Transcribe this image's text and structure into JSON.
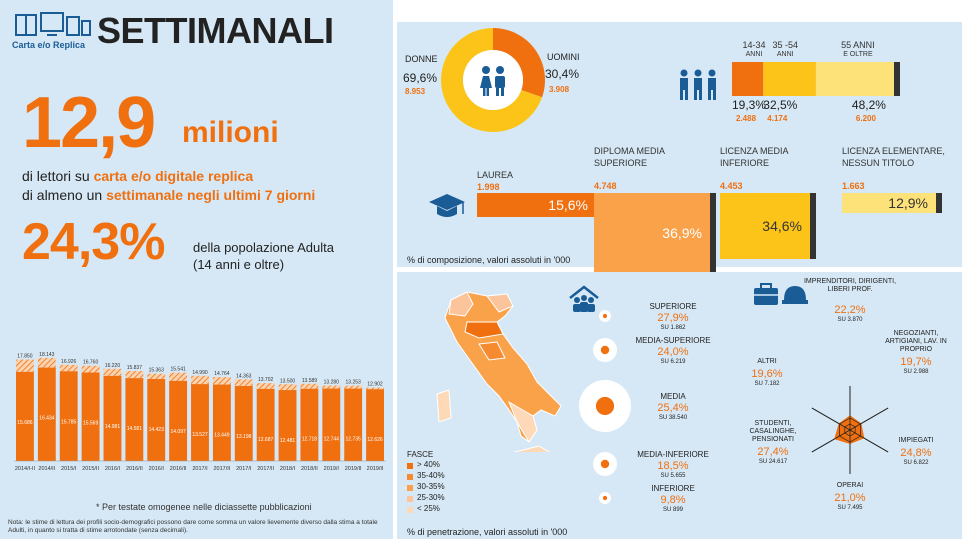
{
  "header": {
    "logo_text": "Carta e/o Replica",
    "title": "SETTIMANALI"
  },
  "hero": {
    "big_number": "12,9",
    "big_unit": "milioni",
    "line1_prefix": "di lettori su",
    "line1_highlight": "carta e/o digitale replica",
    "line2_prefix": "di almeno un",
    "line2_highlight": "settimanale negli ultimi 7 giorni",
    "pct": "24,3%",
    "pct_desc1": "della popolazione Adulta",
    "pct_desc2": "(14 anni e oltre)"
  },
  "colors": {
    "orange": "#f07010",
    "orange_light": "#f9a24a",
    "yellow": "#fcc419",
    "yellow_light": "#fde27a",
    "panel": "#d6e8f5"
  },
  "chart_data": {
    "type": "bar",
    "categories": [
      "2014/I-II",
      "2014/II",
      "2015/I",
      "2015/II",
      "2016/I",
      "2016/II",
      "2016/I",
      "2016/II",
      "2017/I",
      "2017/II",
      "2017/I",
      "2017/II",
      "2018/I",
      "2018/II",
      "2019/I",
      "2019/II",
      "2019/II"
    ],
    "series": [
      {
        "values": [
          17850,
          18143,
          16926,
          16760,
          16220,
          15837,
          15363,
          15541,
          14990,
          14764,
          14363,
          13702,
          13500,
          13589,
          13280,
          13253,
          12902
        ]
      },
      {
        "values": [
          15686,
          16434,
          15785,
          15569,
          14981,
          14581,
          14423,
          14097,
          13527,
          13449,
          13198,
          12687,
          12481,
          12718,
          12744,
          12735,
          12626
        ]
      }
    ],
    "top_labels": [
      "17.850",
      "18.143",
      "16.926",
      "16.760",
      "16.220",
      "15.837",
      "15.363",
      "15.541",
      "14.990",
      "14.764",
      "14.363",
      "13.702",
      "13.500",
      "13.589",
      "13.280",
      "13.253",
      "12.902"
    ],
    "inner_labels": [
      "15.686",
      "16.434",
      "15.785",
      "15.569",
      "14.981",
      "14.581",
      "14.423",
      "14.097",
      "13.527",
      "13.449",
      "13.198",
      "12.687",
      "12.481",
      "12.718",
      "12.744",
      "12.735",
      "12.626"
    ],
    "ylim": [
      0,
      19000
    ]
  },
  "footnote_star": "* Per testate omogenee nelle diciassette pubblicazioni",
  "note": "Nota: le stime di lettura dei profili socio-demografici possono dare come somma un valore lievemente diverso dalla stima a totale Adulti, in quanto si tratta di stime arrotondate (senza decimali).",
  "gender": {
    "women_label": "DONNE",
    "women_pct": "69,6%",
    "women_abs": "8.953",
    "men_label": "UOMINI",
    "men_pct": "30,4%",
    "men_abs": "3.908",
    "values": [
      69.6,
      30.4
    ]
  },
  "age": {
    "groups": [
      {
        "label": "14-34",
        "sub": "ANNI",
        "pct": "19,3%",
        "abs": "2.488",
        "value": 19.3
      },
      {
        "label": "35 -54",
        "sub": "ANNI",
        "pct": "32,5%",
        "abs": "4.174",
        "value": 32.5
      },
      {
        "label": "55 ANNI",
        "sub": "E OLTRE",
        "pct": "48,2%",
        "abs": "6.200",
        "value": 48.2
      }
    ]
  },
  "education": {
    "items": [
      {
        "label": "LAUREA",
        "abs": "1.998",
        "pct": "15,6%",
        "value": 15.6
      },
      {
        "label": "DIPLOMA MEDIA SUPERIORE",
        "abs": "4.748",
        "pct": "36,9%",
        "value": 36.9
      },
      {
        "label": "LICENZA MEDIA INFERIORE",
        "abs": "4.453",
        "pct": "34,6%",
        "value": 34.6
      },
      {
        "label": "LICENZA ELEMENTARE, NESSUN TITOLO",
        "abs": "1.663",
        "pct": "12,9%",
        "value": 12.9
      }
    ],
    "footer": "% di composizione, valori assoluti in '000"
  },
  "map": {
    "legend_title": "FASCE",
    "legend": [
      "> 40%",
      "35-40%",
      "30-35%",
      "25-30%",
      "< 25%"
    ]
  },
  "classes": {
    "items": [
      {
        "label": "SUPERIORE",
        "pct": "27,9%",
        "su": "SU 1.862",
        "value": 27.9
      },
      {
        "label": "MEDIA-SUPERIORE",
        "pct": "24,0%",
        "su": "SU 6.219",
        "value": 24.0
      },
      {
        "label": "MEDIA",
        "pct": "25,4%",
        "su": "SU 38.540",
        "value": 25.4
      },
      {
        "label": "MEDIA-INFERIORE",
        "pct": "18,5%",
        "su": "SU 5.655",
        "value": 18.5
      },
      {
        "label": "INFERIORE",
        "pct": "9,8%",
        "su": "SU 899",
        "value": 9.8
      }
    ],
    "footer": "% di penetrazione, valori assoluti in '000"
  },
  "professions": {
    "imprenditori": {
      "label": "IMPRENDITORI, DIRIGENTI, LIBERI PROF.",
      "pct": "22,2%",
      "su": "SU 3.870",
      "value": 22.2
    },
    "negozianti": {
      "label": "NEGOZIANTI, ARTIGIANI, LAV. IN PROPRIO",
      "pct": "19,7%",
      "su": "SU 2.988",
      "value": 19.7
    },
    "impiegati": {
      "label": "IMPIEGATI",
      "pct": "24,8%",
      "su": "SU 6.822",
      "value": 24.8
    },
    "operai": {
      "label": "OPERAI",
      "pct": "21,0%",
      "su": "SU 7.495",
      "value": 21.0
    },
    "studenti": {
      "label": "STUDENTI, CASALINGHE, PENSIONATI",
      "pct": "27,4%",
      "su": "SU 24.617",
      "value": 27.4
    },
    "altri": {
      "label": "ALTRI",
      "pct": "19,6%",
      "su": "SU 7.182",
      "value": 19.6
    }
  }
}
